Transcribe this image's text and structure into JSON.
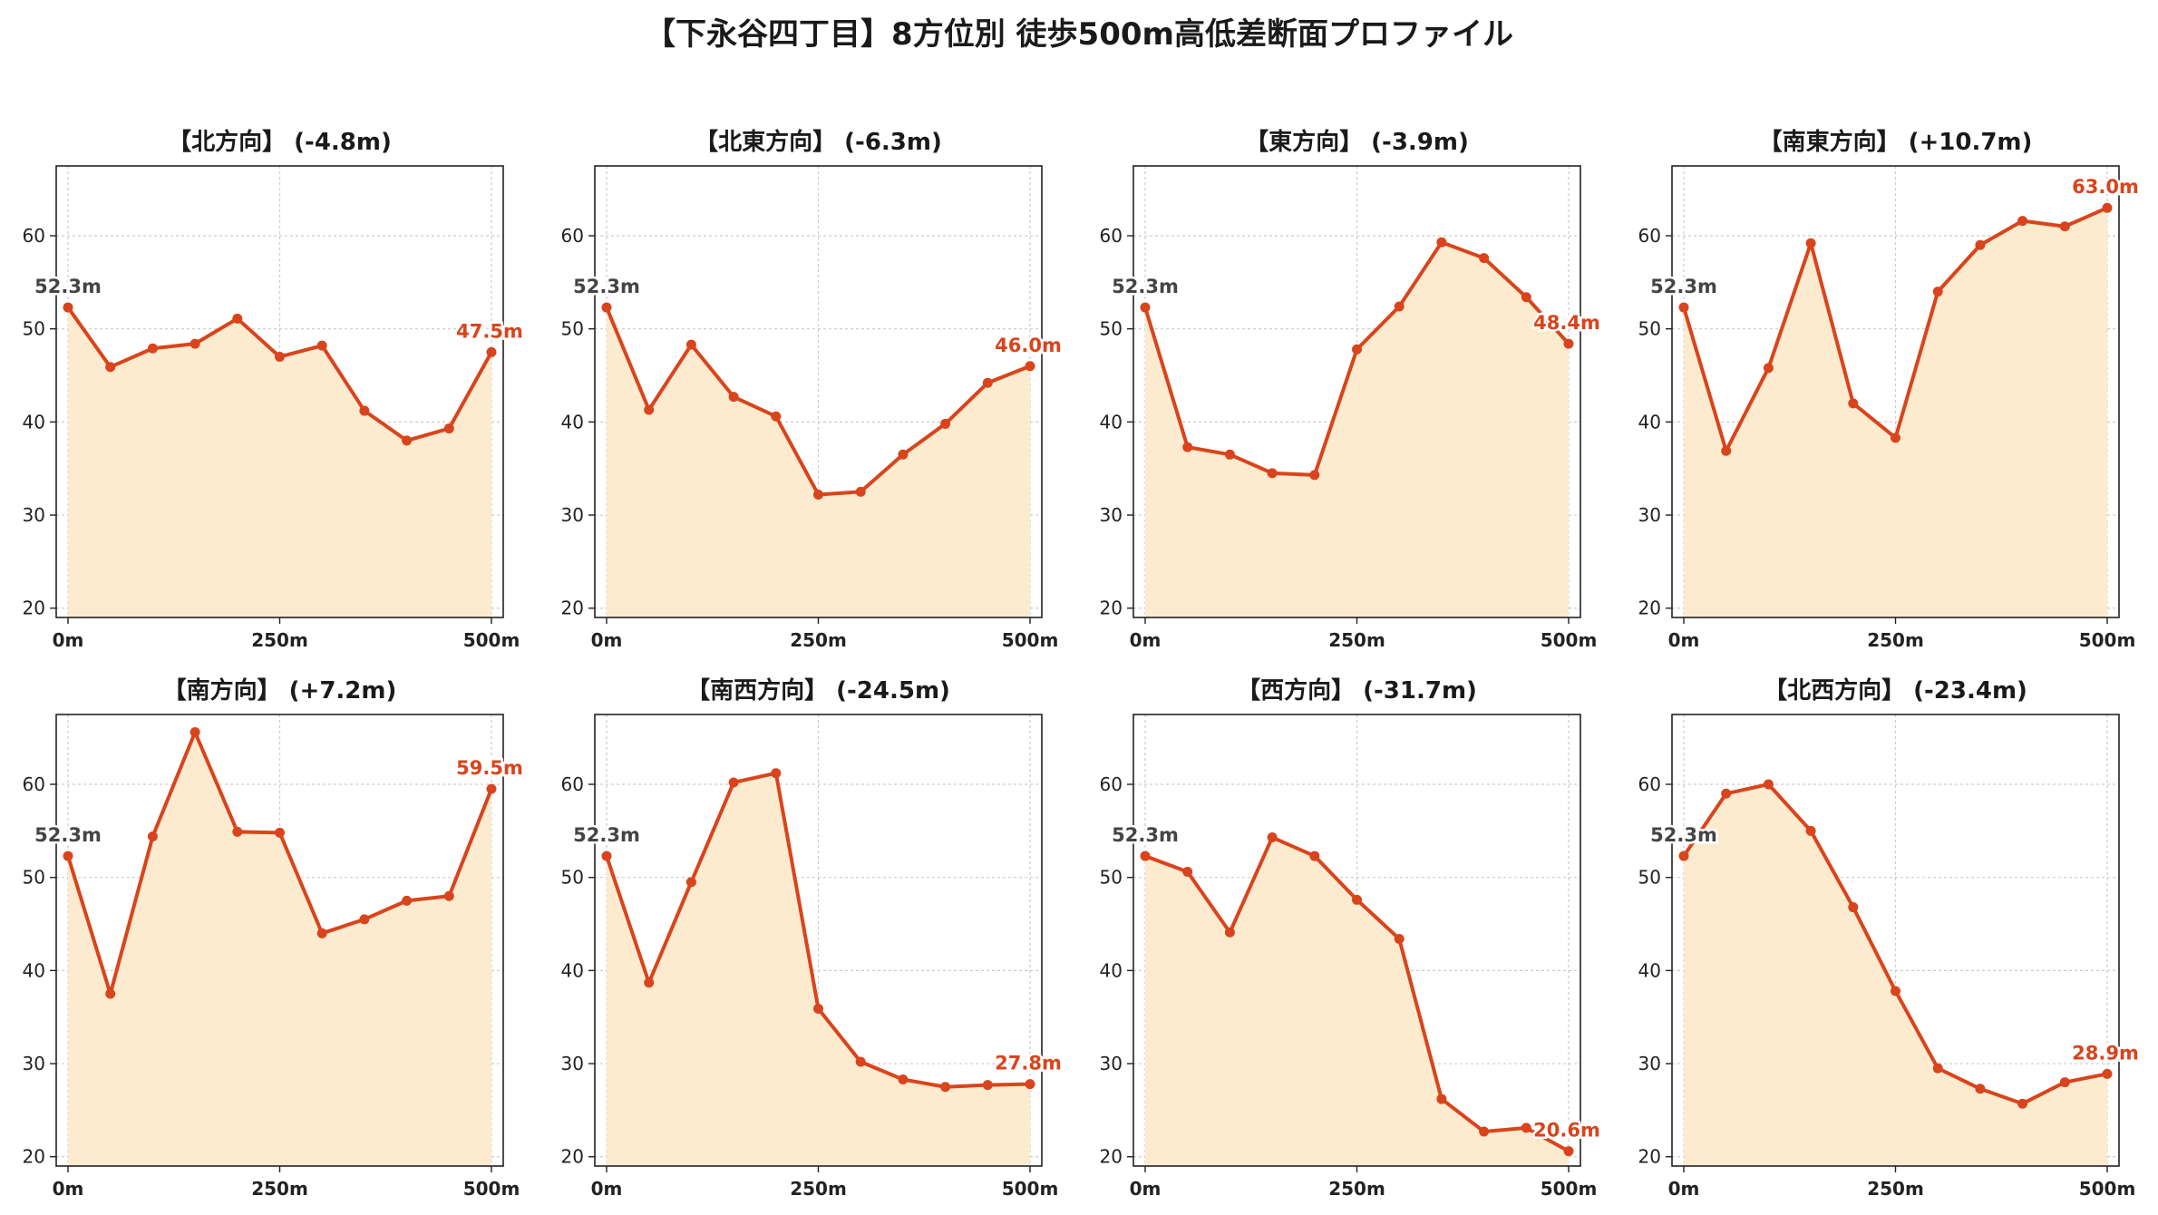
{
  "page": {
    "title": "【下永谷四丁目】8方位別 徒歩500m高低差断面プロファイル"
  },
  "colors": {
    "line": "#d9441c",
    "fill": "#fdebd0",
    "start_label": "#444444",
    "end_label": "#d9441c",
    "grid": "#cccccc"
  },
  "chart_data": [
    {
      "type": "area",
      "title": "【北方向】 (-4.8m)",
      "x": [
        0,
        50,
        100,
        150,
        200,
        250,
        300,
        350,
        400,
        450,
        500
      ],
      "values": [
        52.3,
        45.9,
        47.9,
        48.4,
        51.1,
        47.0,
        48.2,
        41.2,
        38.0,
        39.3,
        47.5
      ],
      "xticks": [
        "0m",
        "250m",
        "500m"
      ],
      "yticks": [
        20,
        30,
        40,
        50,
        60
      ],
      "ylim": [
        19,
        67.5
      ],
      "start_label": "52.3m",
      "end_label": "47.5m",
      "grid": true
    },
    {
      "type": "area",
      "title": "【北東方向】 (-6.3m)",
      "x": [
        0,
        50,
        100,
        150,
        200,
        250,
        300,
        350,
        400,
        450,
        500
      ],
      "values": [
        52.3,
        41.3,
        48.3,
        42.7,
        40.6,
        32.2,
        32.5,
        36.5,
        39.8,
        44.2,
        46.0
      ],
      "xticks": [
        "0m",
        "250m",
        "500m"
      ],
      "yticks": [
        20,
        30,
        40,
        50,
        60
      ],
      "ylim": [
        19,
        67.5
      ],
      "start_label": "52.3m",
      "end_label": "46.0m",
      "grid": true
    },
    {
      "type": "area",
      "title": "【東方向】 (-3.9m)",
      "x": [
        0,
        50,
        100,
        150,
        200,
        250,
        300,
        350,
        400,
        450,
        500
      ],
      "values": [
        52.3,
        37.3,
        36.5,
        34.5,
        34.3,
        47.8,
        52.4,
        59.3,
        57.6,
        53.4,
        48.4
      ],
      "xticks": [
        "0m",
        "250m",
        "500m"
      ],
      "yticks": [
        20,
        30,
        40,
        50,
        60
      ],
      "ylim": [
        19,
        67.5
      ],
      "start_label": "52.3m",
      "end_label": "48.4m",
      "grid": true
    },
    {
      "type": "area",
      "title": "【南東方向】 (+10.7m)",
      "x": [
        0,
        50,
        100,
        150,
        200,
        250,
        300,
        350,
        400,
        450,
        500
      ],
      "values": [
        52.3,
        36.9,
        45.8,
        59.2,
        42.0,
        38.3,
        54.0,
        59.0,
        61.6,
        61.0,
        63.0
      ],
      "xticks": [
        "0m",
        "250m",
        "500m"
      ],
      "yticks": [
        20,
        30,
        40,
        50,
        60
      ],
      "ylim": [
        19,
        67.5
      ],
      "start_label": "52.3m",
      "end_label": "63.0m",
      "grid": true
    },
    {
      "type": "area",
      "title": "【南方向】 (+7.2m)",
      "x": [
        0,
        50,
        100,
        150,
        200,
        250,
        300,
        350,
        400,
        450,
        500
      ],
      "values": [
        52.3,
        37.5,
        54.4,
        65.6,
        54.9,
        54.8,
        44.0,
        45.5,
        47.5,
        48.0,
        59.5
      ],
      "xticks": [
        "0m",
        "250m",
        "500m"
      ],
      "yticks": [
        20,
        30,
        40,
        50,
        60
      ],
      "ylim": [
        19,
        67.5
      ],
      "start_label": "52.3m",
      "end_label": "59.5m",
      "grid": true
    },
    {
      "type": "area",
      "title": "【南西方向】 (-24.5m)",
      "x": [
        0,
        50,
        100,
        150,
        200,
        250,
        300,
        350,
        400,
        450,
        500
      ],
      "values": [
        52.3,
        38.7,
        49.5,
        60.2,
        61.2,
        35.9,
        30.2,
        28.3,
        27.5,
        27.7,
        27.8
      ],
      "xticks": [
        "0m",
        "250m",
        "500m"
      ],
      "yticks": [
        20,
        30,
        40,
        50,
        60
      ],
      "ylim": [
        19,
        67.5
      ],
      "start_label": "52.3m",
      "end_label": "27.8m",
      "grid": true
    },
    {
      "type": "area",
      "title": "【西方向】 (-31.7m)",
      "x": [
        0,
        50,
        100,
        150,
        200,
        250,
        300,
        350,
        400,
        450,
        500
      ],
      "values": [
        52.3,
        50.6,
        44.1,
        54.3,
        52.3,
        47.6,
        43.4,
        26.2,
        22.7,
        23.1,
        20.6
      ],
      "xticks": [
        "0m",
        "250m",
        "500m"
      ],
      "yticks": [
        20,
        30,
        40,
        50,
        60
      ],
      "ylim": [
        19,
        67.5
      ],
      "start_label": "52.3m",
      "end_label": "20.6m",
      "grid": true
    },
    {
      "type": "area",
      "title": "【北西方向】 (-23.4m)",
      "x": [
        0,
        50,
        100,
        150,
        200,
        250,
        300,
        350,
        400,
        450,
        500
      ],
      "values": [
        52.3,
        59.0,
        60.0,
        55.0,
        46.8,
        37.8,
        29.5,
        27.3,
        25.7,
        28.0,
        28.9
      ],
      "xticks": [
        "0m",
        "250m",
        "500m"
      ],
      "yticks": [
        20,
        30,
        40,
        50,
        60
      ],
      "ylim": [
        19,
        67.5
      ],
      "start_label": "52.3m",
      "end_label": "28.9m",
      "grid": true
    }
  ]
}
